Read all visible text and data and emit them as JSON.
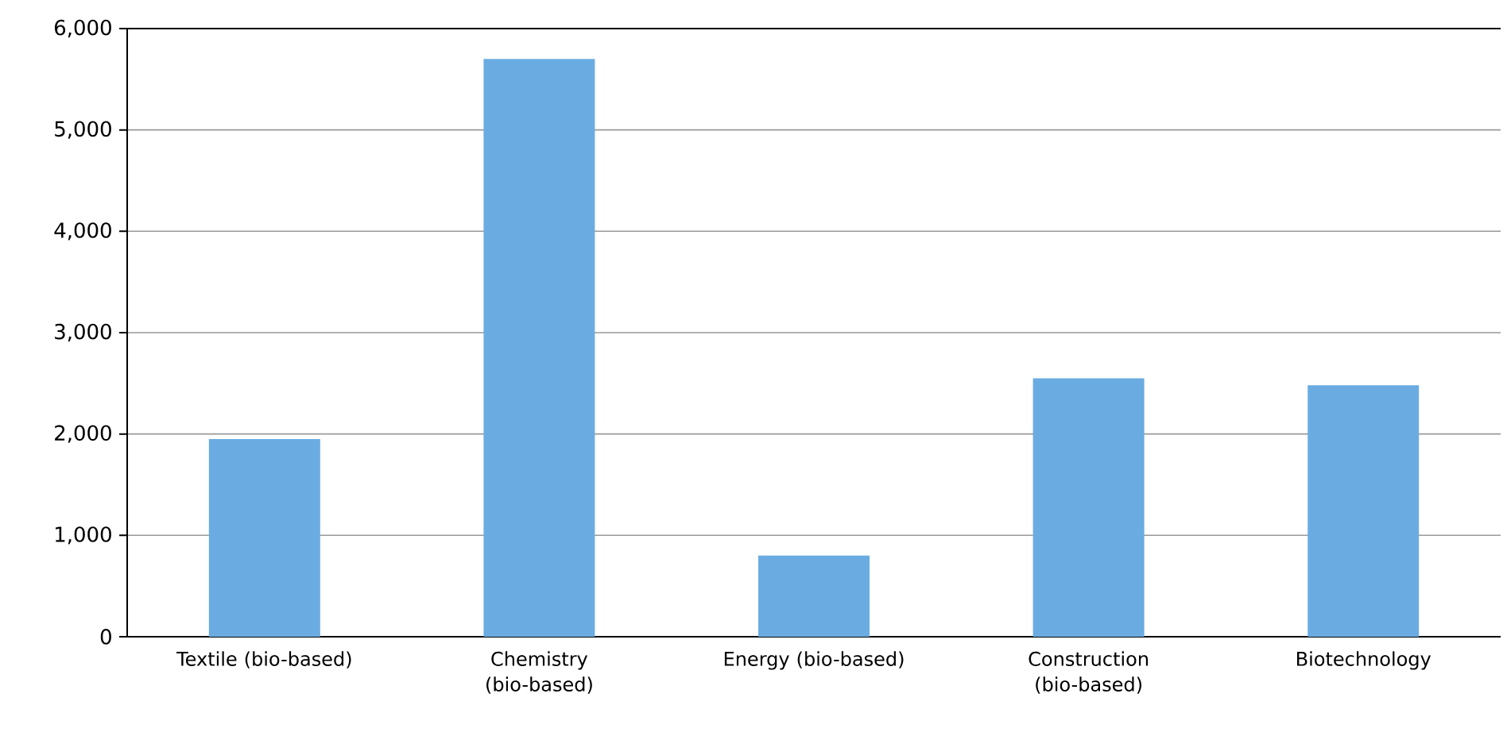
{
  "chart_data": {
    "type": "bar",
    "categories": [
      "Textile (bio-based)",
      "Chemistry (bio-based)",
      "Energy (bio-based)",
      "Construction (bio-based)",
      "Biotechnology"
    ],
    "values": [
      1950,
      5700,
      800,
      2550,
      2480
    ],
    "color": "#6aace2",
    "ylim": [
      0,
      6000
    ],
    "yticks": [
      {
        "value": 0,
        "label": "0"
      },
      {
        "value": 1000,
        "label": "1,000"
      },
      {
        "value": 2000,
        "label": "2,000"
      },
      {
        "value": 3000,
        "label": "3,000"
      },
      {
        "value": 4000,
        "label": "4,000"
      },
      {
        "value": 5000,
        "label": "5,000"
      },
      {
        "value": 6000,
        "label": "6,000"
      }
    ],
    "grid": "y"
  }
}
